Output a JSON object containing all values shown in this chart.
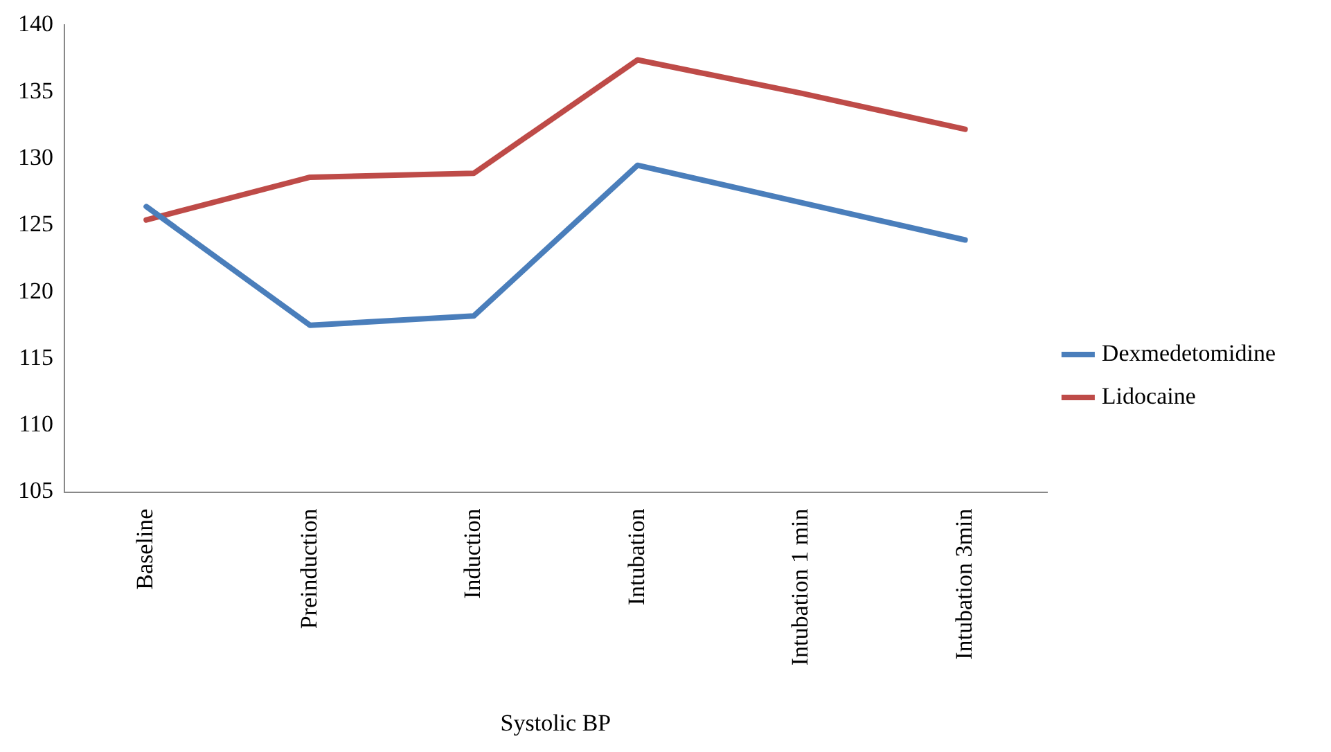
{
  "chart_data": {
    "type": "line",
    "xlabel": "Systolic BP",
    "categories": [
      "Baseline",
      "Preinduction",
      "Induction",
      "Intubation",
      "Intubation 1 min",
      "Intubation 3min"
    ],
    "series": [
      {
        "name": "Dexmedetomidine",
        "color": "#4a7ebb",
        "values": [
          126.4,
          117.5,
          118.2,
          129.5,
          126.7,
          123.9
        ]
      },
      {
        "name": "Lidocaine",
        "color": "#be4b48",
        "values": [
          125.4,
          128.6,
          128.9,
          137.4,
          134.9,
          132.2
        ]
      }
    ],
    "ylim": [
      105,
      140
    ],
    "yticks": [
      105,
      110,
      115,
      120,
      125,
      130,
      135,
      140
    ],
    "grid": false,
    "legend": "right",
    "marker": "none",
    "line_style": "solid"
  }
}
